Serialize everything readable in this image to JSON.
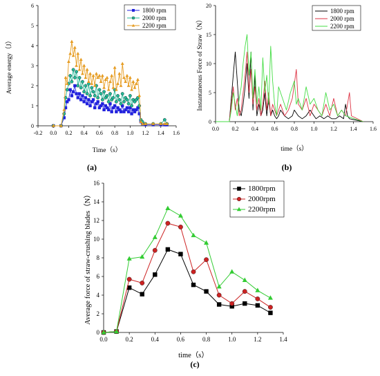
{
  "chart_data": [
    {
      "panel": "(a)",
      "type": "line",
      "xlabel": "Time（s）",
      "ylabel": "Average energy（J）",
      "xlim": [
        -0.2,
        1.6
      ],
      "ylim": [
        0,
        6
      ],
      "xticks": [
        "-0.2",
        "0.0",
        "0.2",
        "0.4",
        "0.6",
        "0.8",
        "1.0",
        "1.2",
        "1.4",
        "1.6"
      ],
      "yticks": [
        "0",
        "1",
        "2",
        "3",
        "4",
        "5",
        "6"
      ],
      "legend_position": "top-right",
      "series": [
        {
          "name": "1800 rpm",
          "color": "#2222dd",
          "marker": "square",
          "x": [
            0.0,
            0.1,
            0.14,
            0.16,
            0.18,
            0.2,
            0.22,
            0.24,
            0.26,
            0.28,
            0.3,
            0.32,
            0.34,
            0.36,
            0.38,
            0.4,
            0.42,
            0.44,
            0.46,
            0.48,
            0.5,
            0.52,
            0.54,
            0.56,
            0.58,
            0.6,
            0.62,
            0.64,
            0.66,
            0.68,
            0.7,
            0.72,
            0.74,
            0.76,
            0.78,
            0.8,
            0.82,
            0.84,
            0.86,
            0.88,
            0.9,
            0.92,
            0.94,
            0.96,
            0.98,
            1.0,
            1.02,
            1.04,
            1.06,
            1.08,
            1.1,
            1.12,
            1.14,
            1.16,
            1.2,
            1.3,
            1.4,
            1.45,
            1.48
          ],
          "y": [
            0,
            0,
            0.4,
            0.9,
            1.2,
            1.3,
            1.8,
            1.5,
            1.7,
            2.0,
            1.6,
            1.4,
            1.6,
            1.3,
            1.5,
            1.2,
            1.4,
            1.1,
            1.3,
            1.0,
            1.2,
            1.3,
            0.9,
            1.1,
            1.2,
            0.9,
            1.0,
            1.1,
            0.8,
            1.0,
            0.9,
            0.8,
            1.1,
            0.7,
            0.9,
            1.0,
            0.7,
            0.9,
            0.8,
            0.7,
            1.0,
            0.7,
            0.8,
            0.9,
            0.7,
            0.9,
            0.6,
            0.8,
            0.7,
            0.8,
            0.9,
            0.6,
            0.2,
            0.1,
            0.05,
            0.05,
            0.05,
            0.05,
            0.05
          ]
        },
        {
          "name": "2000 rpm",
          "color": "#22bb99",
          "marker": "circle",
          "x": [
            0.0,
            0.1,
            0.14,
            0.16,
            0.18,
            0.2,
            0.22,
            0.24,
            0.26,
            0.28,
            0.3,
            0.32,
            0.34,
            0.36,
            0.38,
            0.4,
            0.42,
            0.44,
            0.46,
            0.48,
            0.5,
            0.52,
            0.54,
            0.56,
            0.58,
            0.6,
            0.62,
            0.64,
            0.66,
            0.68,
            0.7,
            0.72,
            0.74,
            0.76,
            0.78,
            0.8,
            0.82,
            0.84,
            0.86,
            0.88,
            0.9,
            0.92,
            0.94,
            0.96,
            0.98,
            1.0,
            1.02,
            1.04,
            1.06,
            1.08,
            1.1,
            1.12,
            1.14,
            1.16,
            1.2,
            1.3,
            1.4,
            1.45,
            1.48
          ],
          "y": [
            0,
            0,
            0.6,
            1.4,
            1.8,
            2.1,
            2.5,
            2.2,
            2.8,
            2.4,
            2.7,
            2.0,
            2.4,
            1.9,
            2.2,
            1.7,
            2.0,
            1.6,
            2.1,
            1.5,
            1.9,
            1.7,
            1.5,
            2.0,
            1.4,
            1.8,
            1.6,
            1.3,
            1.7,
            1.4,
            1.5,
            1.2,
            1.6,
            1.3,
            1.4,
            1.8,
            1.2,
            1.5,
            1.3,
            1.1,
            1.6,
            1.2,
            1.4,
            1.3,
            1.1,
            1.5,
            1.0,
            1.3,
            1.2,
            1.3,
            1.4,
            1.0,
            0.3,
            0.2,
            0.1,
            0.1,
            0.1,
            0.3,
            0.1
          ]
        },
        {
          "name": "2200 rpm",
          "color": "#e69c22",
          "marker": "triangle",
          "x": [
            0.0,
            0.1,
            0.14,
            0.16,
            0.18,
            0.2,
            0.22,
            0.24,
            0.26,
            0.28,
            0.3,
            0.32,
            0.34,
            0.36,
            0.38,
            0.4,
            0.42,
            0.44,
            0.46,
            0.48,
            0.5,
            0.52,
            0.54,
            0.56,
            0.58,
            0.6,
            0.62,
            0.64,
            0.66,
            0.68,
            0.7,
            0.72,
            0.74,
            0.76,
            0.78,
            0.8,
            0.82,
            0.84,
            0.86,
            0.88,
            0.9,
            0.92,
            0.94,
            0.96,
            0.98,
            1.0,
            1.02,
            1.04,
            1.06,
            1.08,
            1.1,
            1.12,
            1.14,
            1.16,
            1.2,
            1.3,
            1.4,
            1.45,
            1.48
          ],
          "y": [
            0,
            0,
            0.8,
            2.4,
            2.1,
            3.2,
            3.6,
            4.2,
            3.5,
            3.9,
            3.0,
            3.6,
            2.8,
            3.3,
            2.6,
            3.0,
            2.4,
            2.8,
            2.2,
            2.6,
            2.1,
            2.5,
            2.0,
            2.6,
            2.4,
            2.5,
            2.2,
            2.5,
            1.9,
            2.3,
            2.4,
            1.8,
            2.2,
            2.5,
            1.9,
            2.9,
            1.8,
            2.1,
            2.6,
            2.0,
            3.1,
            2.4,
            2.2,
            2.5,
            2.0,
            2.4,
            1.8,
            2.2,
            1.9,
            2.1,
            2.3,
            1.5,
            0.2,
            0.1,
            0.1,
            0.1,
            0.1,
            0.1,
            0.1
          ]
        }
      ]
    },
    {
      "panel": "(b)",
      "type": "line",
      "xlabel": "time（s）",
      "ylabel": "Instantaneous Force of Straw（N）",
      "xlim": [
        0.0,
        1.6
      ],
      "ylim": [
        0,
        20
      ],
      "xticks": [
        "0.0",
        "0.2",
        "0.4",
        "0.6",
        "0.8",
        "1.0",
        "1.2",
        "1.4",
        "1.6"
      ],
      "yticks": [
        "0",
        "5",
        "10",
        "15",
        "20"
      ],
      "legend_position": "top-right",
      "series": [
        {
          "name": "1800 rpm",
          "color": "#000000",
          "x": [
            0.0,
            0.14,
            0.16,
            0.18,
            0.2,
            0.22,
            0.24,
            0.26,
            0.28,
            0.3,
            0.32,
            0.34,
            0.36,
            0.38,
            0.4,
            0.42,
            0.44,
            0.46,
            0.48,
            0.5,
            0.52,
            0.54,
            0.56,
            0.58,
            0.6,
            0.62,
            0.64,
            0.66,
            0.7,
            0.74,
            0.78,
            0.8,
            0.84,
            0.88,
            0.92,
            0.96,
            1.0,
            1.02,
            1.06,
            1.1,
            1.14,
            1.18,
            1.22,
            1.26,
            1.3,
            1.32,
            1.34,
            1.36,
            1.5
          ],
          "y": [
            0,
            0,
            4,
            8,
            12,
            7,
            2,
            1,
            3,
            6,
            10,
            4,
            12,
            2,
            8,
            1,
            3,
            1,
            2,
            5,
            1,
            4,
            1,
            2,
            1,
            0.5,
            1,
            2,
            1,
            0.5,
            1,
            2,
            1,
            0.5,
            1,
            2,
            1,
            0.5,
            1,
            0.5,
            1,
            0.5,
            0.5,
            1,
            0.5,
            3,
            1,
            0.5,
            0
          ]
        },
        {
          "name": "2000 rpm",
          "color": "#dd3344",
          "x": [
            0.0,
            0.14,
            0.16,
            0.18,
            0.2,
            0.22,
            0.24,
            0.26,
            0.28,
            0.3,
            0.32,
            0.34,
            0.36,
            0.38,
            0.4,
            0.42,
            0.44,
            0.46,
            0.48,
            0.5,
            0.52,
            0.54,
            0.56,
            0.58,
            0.6,
            0.62,
            0.66,
            0.7,
            0.74,
            0.78,
            0.82,
            0.84,
            0.88,
            0.92,
            0.96,
            1.0,
            1.04,
            1.08,
            1.12,
            1.16,
            1.2,
            1.24,
            1.28,
            1.32,
            1.36,
            1.38,
            1.5
          ],
          "y": [
            0,
            0,
            3,
            6,
            2,
            4,
            1,
            2,
            5,
            8,
            12,
            5,
            9,
            3,
            6,
            2,
            4,
            1,
            3,
            7,
            2,
            5,
            1,
            3,
            2,
            1,
            3,
            1,
            2,
            4,
            9,
            3,
            2,
            4,
            1,
            3,
            2,
            1,
            3,
            1,
            4,
            1,
            2,
            1,
            5,
            1,
            0
          ]
        },
        {
          "name": "2200 rpm",
          "color": "#44dd44",
          "x": [
            0.0,
            0.14,
            0.16,
            0.18,
            0.2,
            0.22,
            0.24,
            0.26,
            0.28,
            0.3,
            0.32,
            0.34,
            0.36,
            0.38,
            0.4,
            0.42,
            0.44,
            0.46,
            0.48,
            0.5,
            0.52,
            0.54,
            0.56,
            0.58,
            0.6,
            0.62,
            0.64,
            0.68,
            0.72,
            0.76,
            0.8,
            0.82,
            0.84,
            0.88,
            0.92,
            0.96,
            1.0,
            1.04,
            1.08,
            1.12,
            1.16,
            1.2,
            1.24,
            1.28,
            1.32,
            1.5
          ],
          "y": [
            0,
            0,
            2,
            5,
            3,
            1,
            4,
            6,
            10,
            13,
            15,
            8,
            12,
            4,
            9,
            3,
            6,
            2,
            11,
            5,
            8,
            3,
            13,
            7,
            3,
            1,
            6,
            4,
            2,
            5,
            7,
            3,
            4,
            2,
            6,
            3,
            4,
            2,
            1,
            5,
            2,
            3,
            1,
            2,
            1,
            0
          ]
        }
      ]
    },
    {
      "panel": "(c)",
      "type": "line",
      "xlabel": "time（s）",
      "ylabel": "Average force of straw-crushing blades（N）",
      "xlim": [
        0.0,
        1.4
      ],
      "ylim": [
        0,
        16
      ],
      "xticks": [
        "0.0",
        "0.2",
        "0.4",
        "0.6",
        "0.8",
        "1.0",
        "1.2",
        "1.4"
      ],
      "yticks": [
        "0",
        "2",
        "4",
        "6",
        "8",
        "10",
        "12",
        "14",
        "16"
      ],
      "legend_position": "top-right",
      "series": [
        {
          "name": "1800rpm",
          "color": "#000000",
          "marker": "square",
          "x": [
            0.0,
            0.1,
            0.2,
            0.3,
            0.4,
            0.5,
            0.6,
            0.7,
            0.8,
            0.9,
            1.0,
            1.1,
            1.2,
            1.3
          ],
          "y": [
            0.0,
            0.1,
            4.8,
            4.1,
            6.2,
            8.9,
            8.4,
            5.1,
            4.4,
            3.0,
            2.8,
            3.1,
            2.9,
            2.1
          ]
        },
        {
          "name": "2000rpm",
          "color": "#cc2222",
          "marker": "circle",
          "x": [
            0.0,
            0.1,
            0.2,
            0.3,
            0.4,
            0.5,
            0.6,
            0.7,
            0.8,
            0.9,
            1.0,
            1.1,
            1.2,
            1.3
          ],
          "y": [
            0.0,
            0.1,
            5.7,
            5.3,
            8.8,
            11.7,
            11.3,
            6.5,
            7.8,
            4.0,
            3.1,
            4.4,
            3.6,
            2.7
          ]
        },
        {
          "name": "2200rpm",
          "color": "#33cc33",
          "marker": "triangle",
          "x": [
            0.0,
            0.1,
            0.2,
            0.3,
            0.4,
            0.5,
            0.6,
            0.7,
            0.8,
            0.9,
            1.0,
            1.1,
            1.2,
            1.3
          ],
          "y": [
            0.0,
            0.1,
            7.9,
            8.1,
            10.2,
            13.3,
            12.5,
            10.4,
            9.6,
            4.9,
            6.5,
            5.6,
            4.5,
            3.7
          ]
        }
      ]
    }
  ]
}
